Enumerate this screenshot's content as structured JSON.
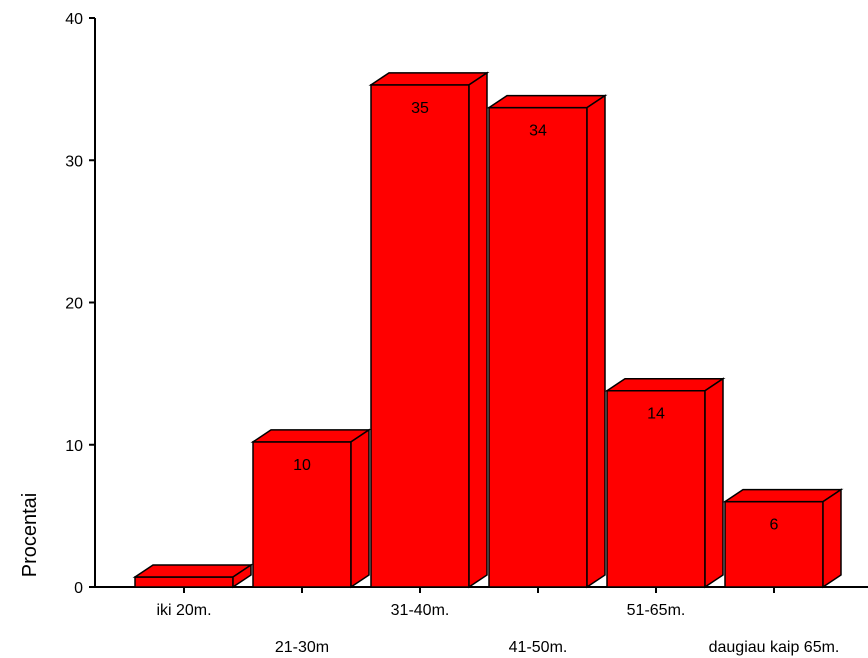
{
  "chart_data": {
    "type": "bar",
    "style": "3d",
    "categories": [
      "iki 20m.",
      "21-30m",
      "31-40m.",
      "41-50m.",
      "51-65m.",
      "daugiau kaip 65m."
    ],
    "values": [
      0.7,
      10.2,
      35.3,
      33.7,
      13.8,
      6.0
    ],
    "data_labels": [
      "",
      "10",
      "35",
      "34",
      "14",
      "6"
    ],
    "ylabel": "Procentai",
    "xlabel": "",
    "ylim": [
      0,
      40
    ],
    "yticks": [
      "0",
      "10",
      "20",
      "30",
      "40"
    ],
    "bar_color": "#ff0000",
    "grid": false
  }
}
